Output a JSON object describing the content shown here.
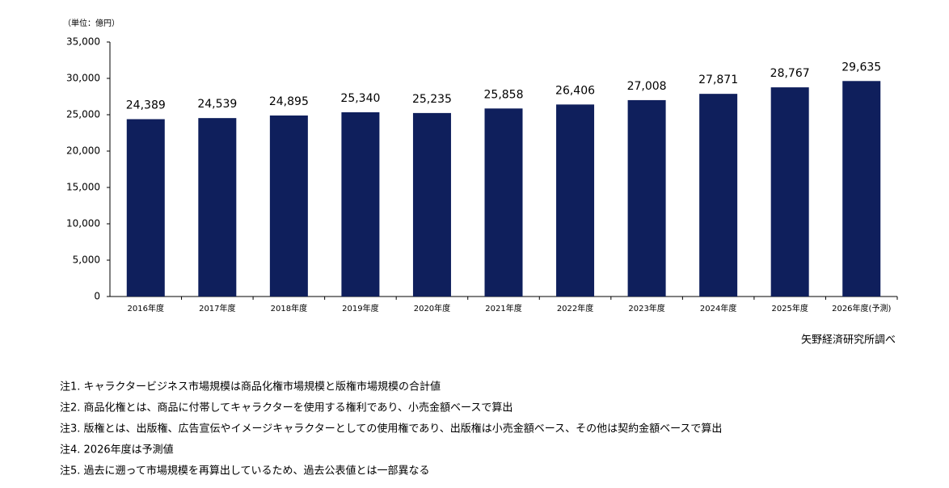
{
  "chart_data": {
    "type": "bar",
    "unit_label": "（単位：億円）",
    "categories": [
      "2016年度",
      "2017年度",
      "2018年度",
      "2019年度",
      "2020年度",
      "2021年度",
      "2022年度",
      "2023年度",
      "2024年度",
      "2025年度",
      "2026年度(予測)"
    ],
    "values": [
      24389,
      24539,
      24895,
      25340,
      25235,
      25858,
      26406,
      27008,
      27871,
      28767,
      29635
    ],
    "value_labels": [
      "24,389",
      "24,539",
      "24,895",
      "25,340",
      "25,235",
      "25,858",
      "26,406",
      "27,008",
      "27,871",
      "28,767",
      "29,635"
    ],
    "color": "#0f1f5c",
    "ylim": [
      0,
      35000
    ],
    "yticks": [
      0,
      {
        "value": 5000,
        "label": "5,000"
      },
      {
        "value": 10000,
        "label": "10,000"
      },
      {
        "value": 15000,
        "label": "15,000"
      },
      {
        "value": 20000,
        "label": "20,000"
      },
      {
        "value": 25000,
        "label": "25,000"
      },
      {
        "value": 30000,
        "label": "30,000"
      },
      {
        "value": 35000,
        "label": "35,000"
      }
    ],
    "grid": false,
    "source": "矢野経済研究所調べ",
    "notes": [
      "注1.  キャラクタービジネス市場規模は商品化権市場規模と版権市場規模の合計値",
      "注2.  商品化権とは、商品に付帯してキャラクターを使用する権利であり、小売金額ベースで算出",
      "注3.  版権とは、出版権、広告宣伝やイメージキャラクターとしての使用権であり、出版権は小売金額ベース、その他は契約金額ベースで算出",
      "注4.  2026年度は予測値",
      "注5.  過去に遡って市場規模を再算出しているため、過去公表値とは一部異なる"
    ]
  }
}
